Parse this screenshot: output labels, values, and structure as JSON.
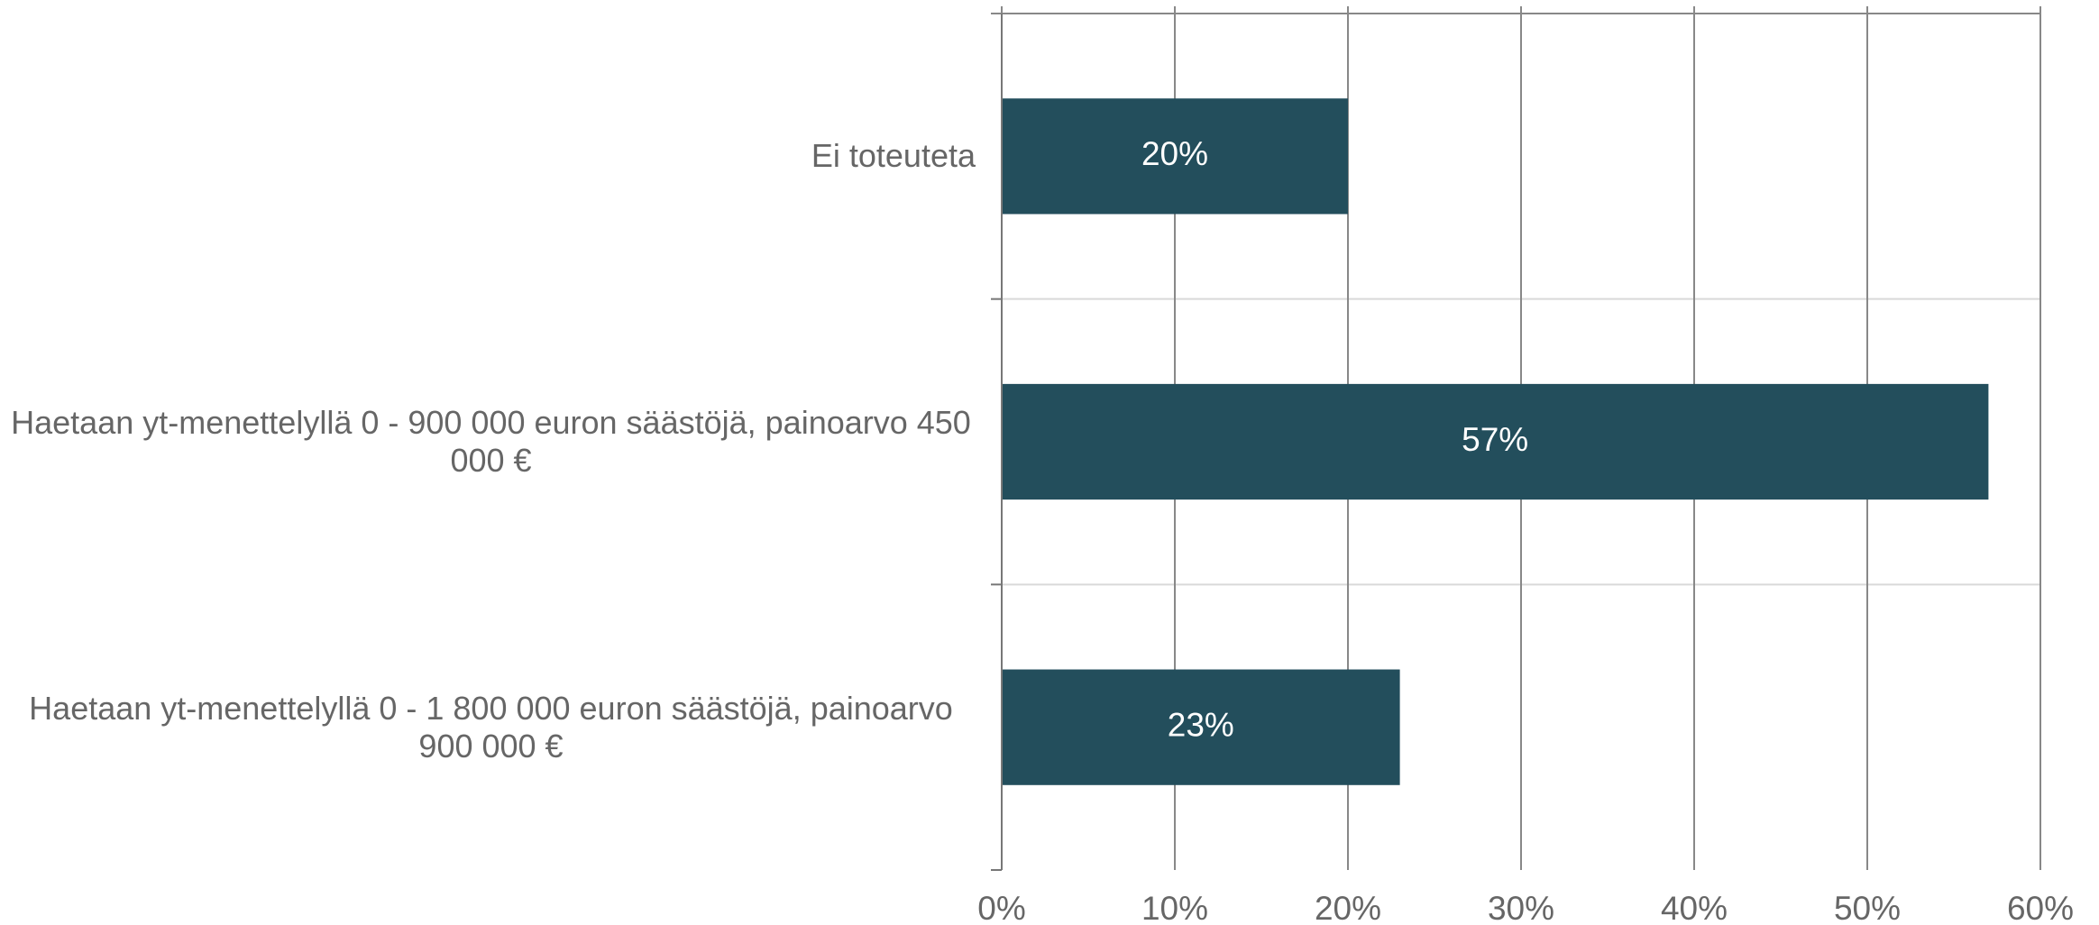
{
  "chart_data": {
    "type": "hbar",
    "categories": [
      "Ei toteuteta",
      "Haetaan yt-menettelyllä 0 - 900 000 euron säästöjä, painoarvo 450 000 €",
      "Haetaan yt-menettelyllä 0 - 1 800 000 euron säästöjä, painoarvo 900 000 €"
    ],
    "values": [
      20,
      57,
      23
    ],
    "value_labels": [
      "20%",
      "57%",
      "23%"
    ],
    "color": "#234e5c",
    "xlim": [
      0,
      60
    ],
    "xticks": [
      {
        "value": 0,
        "label": "0%"
      },
      {
        "value": 10,
        "label": "10%"
      },
      {
        "value": 20,
        "label": "20%"
      },
      {
        "value": 30,
        "label": "30%"
      },
      {
        "value": 40,
        "label": "40%"
      },
      {
        "value": 50,
        "label": "50%"
      },
      {
        "value": 60,
        "label": "60%"
      }
    ],
    "grid": true
  }
}
